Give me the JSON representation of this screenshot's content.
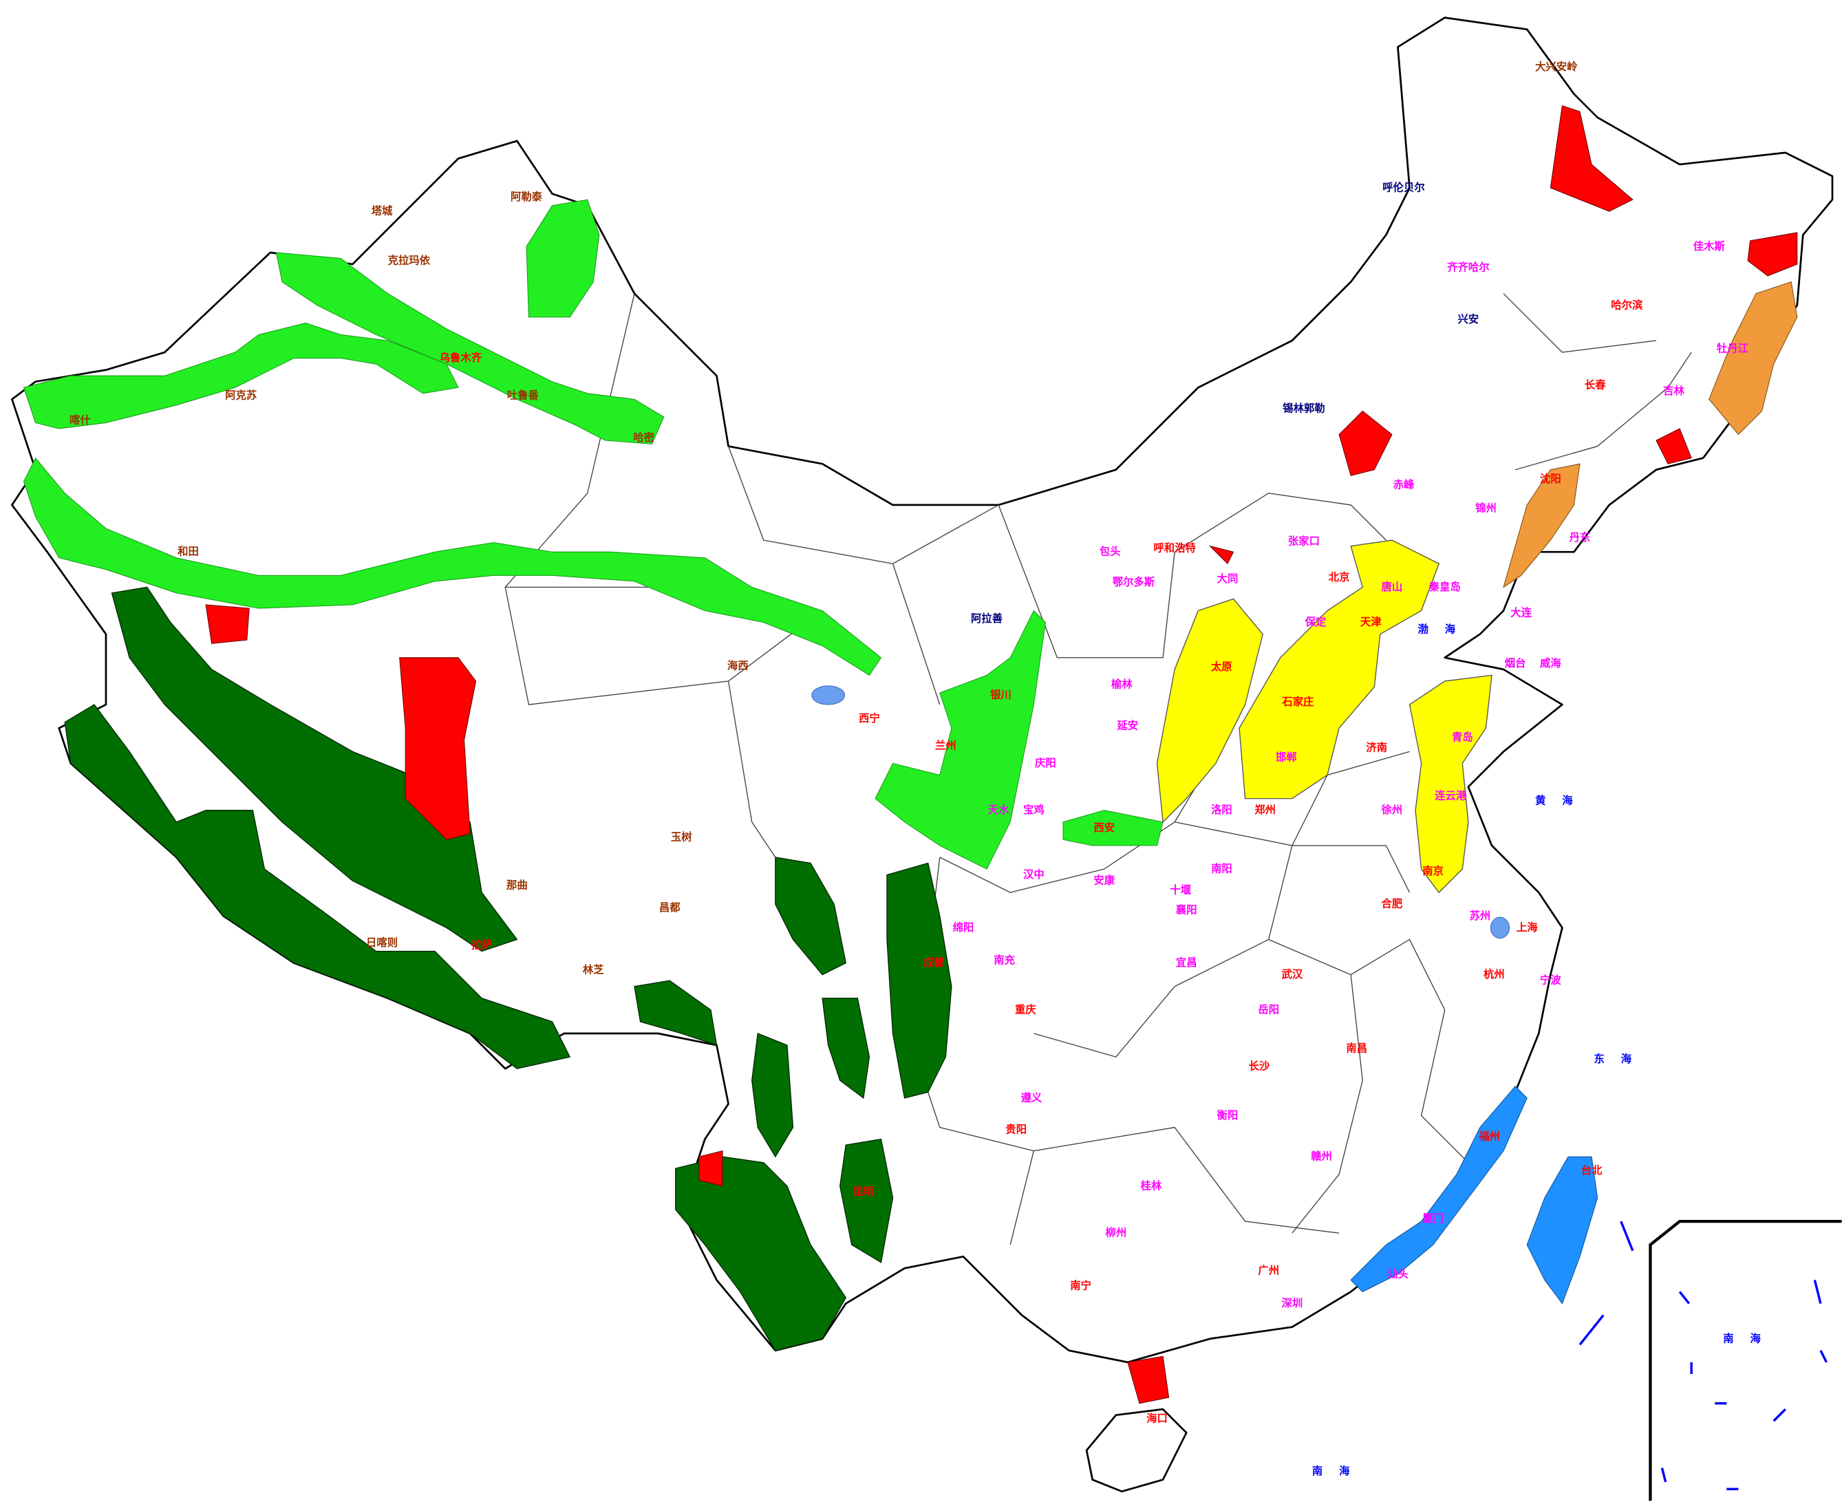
{
  "labels": {
    "capitals": {
      "color": "#ff0000",
      "items": [
        "哈尔滨",
        "长春",
        "沈阳",
        "北京",
        "天津",
        "石家庄",
        "太原",
        "济南",
        "郑州",
        "西安",
        "兰州",
        "西宁",
        "银川",
        "武汉",
        "长沙",
        "南昌",
        "合肥",
        "南京",
        "上海",
        "杭州",
        "福州",
        "广州",
        "南宁",
        "贵阳",
        "昆明",
        "成都",
        "重庆",
        "呼和浩特",
        "乌鲁木齐",
        "拉萨",
        "台北",
        "海口"
      ]
    },
    "cities": {
      "color": "#ff00ff",
      "items": [
        "大连",
        "青岛",
        "烟台",
        "威海",
        "唐山",
        "秦皇岛",
        "保定",
        "邯郸",
        "洛阳",
        "宝鸡",
        "天水",
        "南阳",
        "襄阳",
        "宜昌",
        "岳阳",
        "衡阳",
        "桂林",
        "柳州",
        "厦门",
        "汕头",
        "深圳",
        "宁波",
        "苏州",
        "徐州",
        "连云港",
        "赣州",
        "遵义",
        "绵阳",
        "南充",
        "包头",
        "大同",
        "张家口",
        "赤峰",
        "锦州",
        "丹东",
        "吉林",
        "牡丹江",
        "佳木斯",
        "齐齐哈尔",
        "鄂尔多斯",
        "榆林",
        "延安",
        "庆阳",
        "汉中",
        "安康",
        "十堰"
      ]
    },
    "prefectures": {
      "color": "#993300",
      "items": [
        "大兴安岭",
        "阿勒泰",
        "塔城",
        "克拉玛依",
        "阿克苏",
        "喀什",
        "和田",
        "日喀则",
        "那曲",
        "昌都",
        "林芝",
        "玉树",
        "海西",
        "吐鲁番",
        "哈密"
      ]
    },
    "leagues": {
      "color": "#000080",
      "items": [
        "呼伦贝尔",
        "兴安",
        "锡林郭勒",
        "阿拉善"
      ]
    },
    "seas": {
      "color": "#0000ff",
      "items": [
        "渤海",
        "黄海",
        "东海",
        "南海",
        "南海"
      ]
    }
  }
}
